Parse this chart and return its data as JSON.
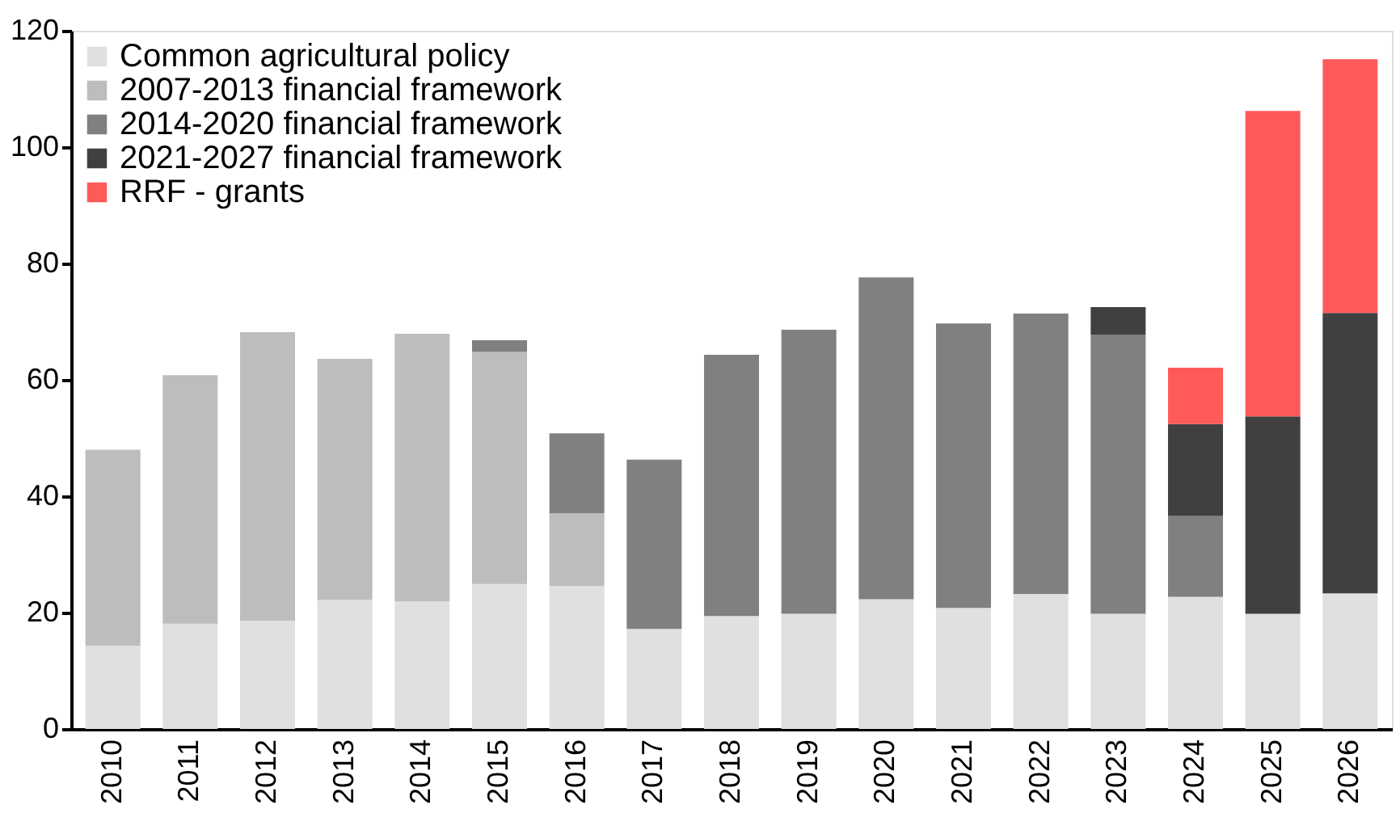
{
  "chart_data": {
    "type": "bar",
    "stacked": true,
    "categories": [
      "2010",
      "2011",
      "2012",
      "2013",
      "2014",
      "2015",
      "2016",
      "2017",
      "2018",
      "2019",
      "2020",
      "2021",
      "2022",
      "2023",
      "2024",
      "2025",
      "2026"
    ],
    "series": [
      {
        "name": "Common agricultural policy",
        "color": "#e0e0e0",
        "values": [
          14.3,
          18.1,
          18.6,
          22.2,
          21.9,
          24.9,
          24.6,
          17.2,
          19.4,
          19.8,
          22.3,
          20.8,
          23.2,
          19.8,
          22.7,
          19.8,
          23.3
        ]
      },
      {
        "name": "2007-2013 financial framework",
        "color": "#bdbdbd",
        "values": [
          33.7,
          42.7,
          49.6,
          41.4,
          46.0,
          39.9,
          12.5,
          null,
          null,
          null,
          null,
          null,
          null,
          null,
          null,
          null,
          null
        ]
      },
      {
        "name": "2014-2020 financial framework",
        "color": "#808080",
        "values": [
          null,
          null,
          null,
          null,
          null,
          2.0,
          13.7,
          29.1,
          44.9,
          48.8,
          55.3,
          48.9,
          48.2,
          47.9,
          13.9,
          null,
          null
        ]
      },
      {
        "name": "2021-2027 financial framework",
        "color": "#404040",
        "values": [
          null,
          null,
          null,
          null,
          null,
          null,
          null,
          null,
          null,
          null,
          null,
          null,
          null,
          4.8,
          15.8,
          33.9,
          48.2
        ]
      },
      {
        "name": "RRF - grants",
        "color": "#ff5a5a",
        "values": [
          null,
          null,
          null,
          null,
          null,
          null,
          null,
          null,
          null,
          null,
          null,
          null,
          null,
          null,
          9.7,
          52.5,
          43.6
        ]
      }
    ],
    "ylim": [
      0,
      120
    ],
    "yticks": [
      0,
      20,
      40,
      60,
      80,
      100,
      120
    ],
    "grid": false,
    "legend": "top left"
  }
}
